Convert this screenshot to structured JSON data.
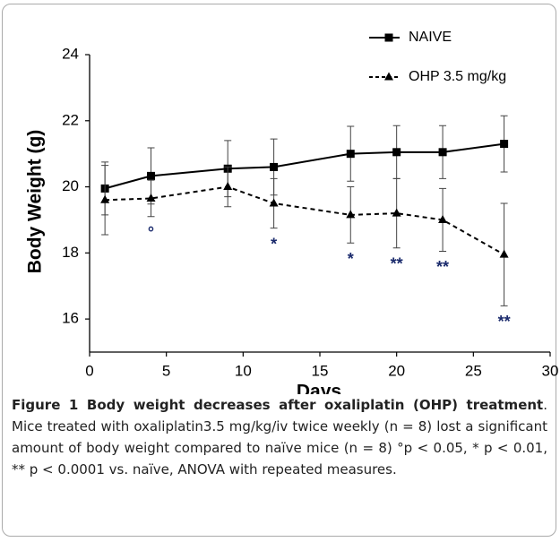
{
  "chart_data": {
    "type": "line",
    "xlabel": "Days",
    "ylabel": "Body Weight (g)",
    "x": [
      1,
      4,
      9,
      12,
      17,
      20,
      23,
      27
    ],
    "xlim": [
      0,
      30
    ],
    "xticks": [
      0,
      5,
      10,
      15,
      20,
      25,
      30
    ],
    "ylim": [
      15,
      24
    ],
    "yticks": [
      16,
      18,
      20,
      22,
      24
    ],
    "legend": "upper right",
    "series": [
      {
        "name": "NAIVE",
        "color": "#000000",
        "style": "solid",
        "marker": "square",
        "values": [
          19.95,
          20.33,
          20.55,
          20.6,
          21.0,
          21.05,
          21.05,
          21.3
        ],
        "errors": [
          0.8,
          0.85,
          0.85,
          0.85,
          0.83,
          0.8,
          0.8,
          0.85
        ]
      },
      {
        "name": "OHP 3.5 mg/kg",
        "color": "#000000",
        "style": "dashed",
        "marker": "triangle",
        "values": [
          19.6,
          19.65,
          20.0,
          19.5,
          19.15,
          19.2,
          19.0,
          17.95
        ],
        "errors": [
          1.05,
          0.55,
          0.6,
          0.75,
          0.85,
          1.05,
          0.95,
          1.55
        ],
        "annotations": [
          null,
          "°",
          null,
          "*",
          "*",
          "**",
          "**",
          "**"
        ],
        "annotation_color": "#1a2a6c"
      }
    ]
  },
  "caption": {
    "title": "Figure 1 Body weight decreases after oxaliplatin (OHP) treatment",
    "text": ". Mice treated with oxaliplatin3.5 mg/kg/iv twice weekly (n = 8) lost a significant amount of body weight compared to naïve mice (n = 8) °p < 0.05, * p < 0.01, ** p < 0.0001 vs. naïve, ANOVA with repeated measures."
  }
}
